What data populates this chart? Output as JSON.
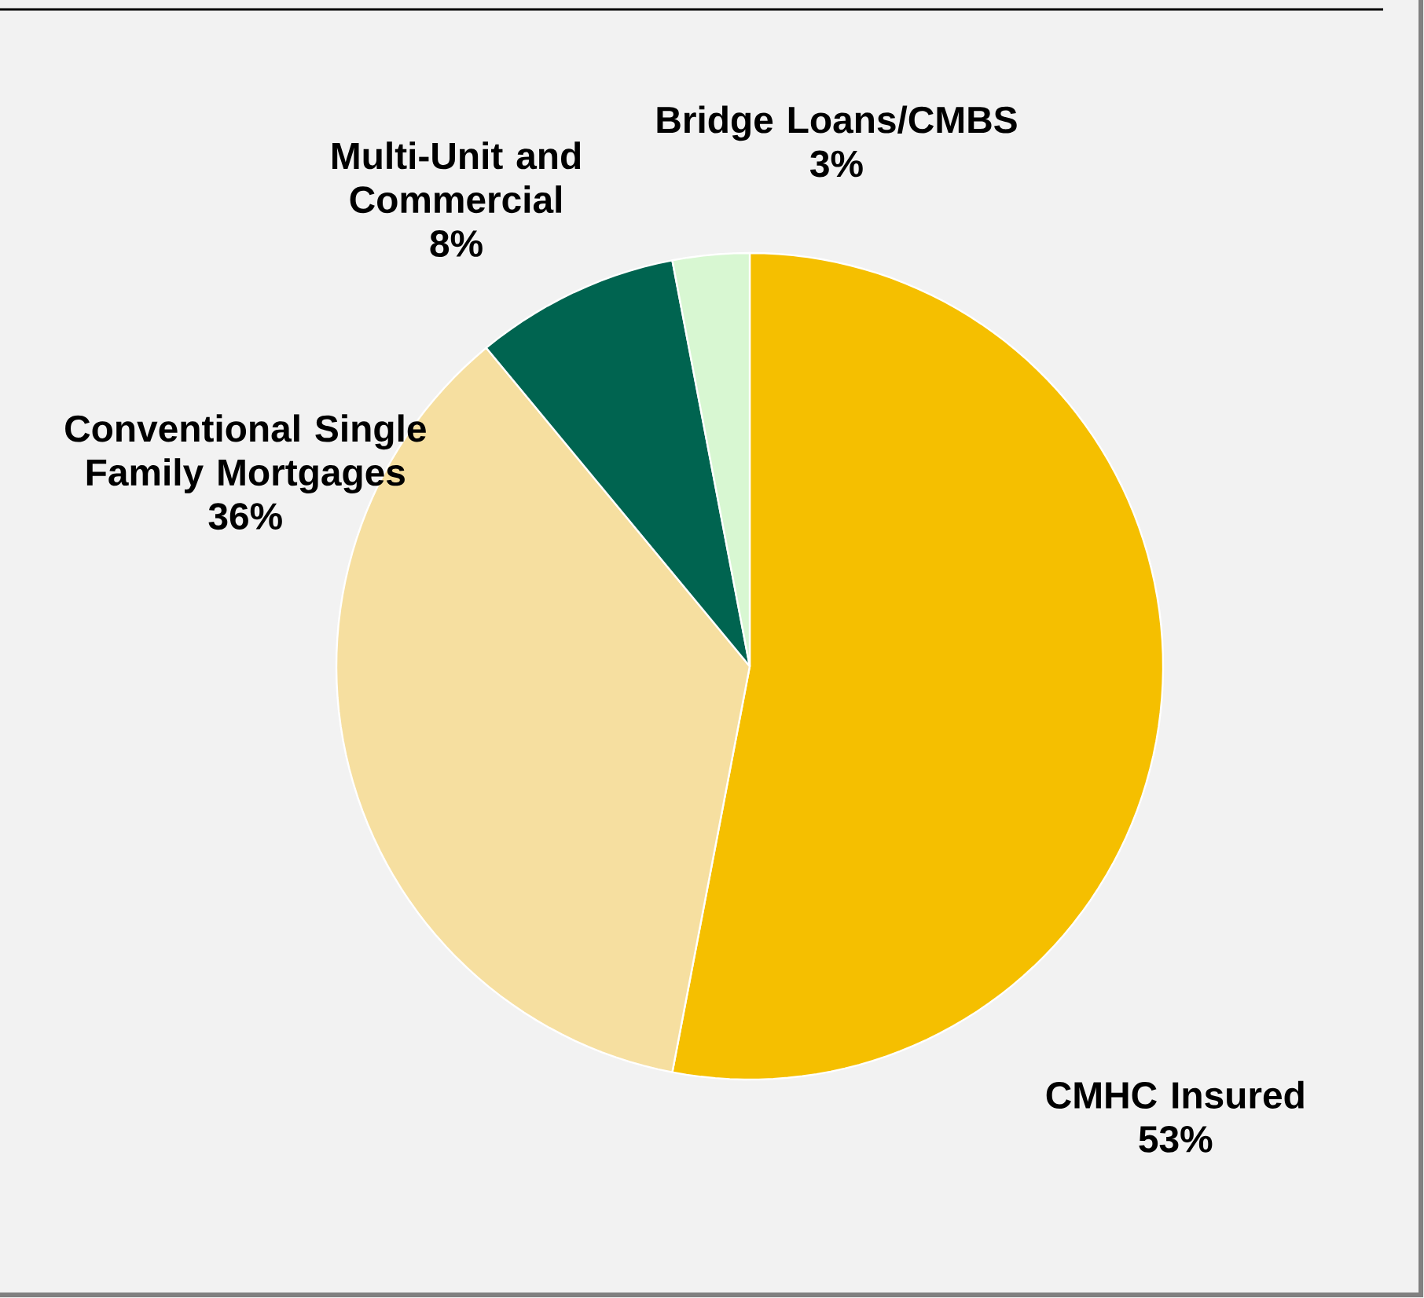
{
  "chart_data": {
    "type": "pie",
    "categories": [
      "CMHC Insured",
      "Conventional Single Family Mortgages",
      "Multi-Unit and Commercial",
      "Bridge Loans/CMBS"
    ],
    "values": [
      53,
      36,
      8,
      3
    ],
    "value_labels": [
      "53%",
      "36%",
      "8%",
      "3%"
    ],
    "colors": [
      "#f5bf00",
      "#f6dfa0",
      "#006450",
      "#d8f7d2"
    ]
  }
}
